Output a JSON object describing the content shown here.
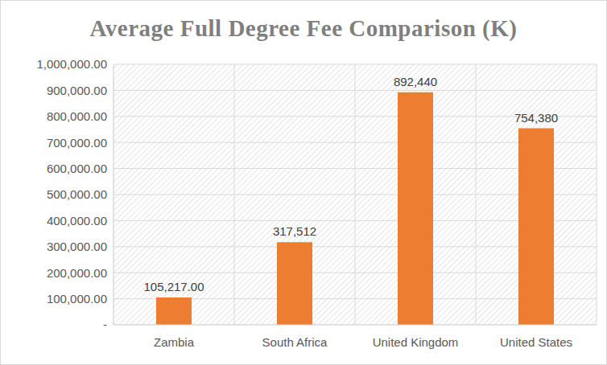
{
  "chart_data": {
    "type": "bar",
    "title": "Average Full Degree Fee Comparison (K)",
    "categories": [
      "Zambia",
      "South Africa",
      "United Kingdom",
      "United States"
    ],
    "values": [
      105217,
      317512,
      892440,
      754380
    ],
    "value_labels": [
      "105,217.00",
      "317,512",
      "892,440",
      "754,380"
    ],
    "color": "#ed7d31",
    "ylim": [
      0,
      1000000
    ],
    "yticks": [
      {
        "value": 0,
        "label": "-"
      },
      {
        "value": 100000,
        "label": "100,000.00"
      },
      {
        "value": 200000,
        "label": "200,000.00"
      },
      {
        "value": 300000,
        "label": "300,000.00"
      },
      {
        "value": 400000,
        "label": "400,000.00"
      },
      {
        "value": 500000,
        "label": "500,000.00"
      },
      {
        "value": 600000,
        "label": "600,000.00"
      },
      {
        "value": 700000,
        "label": "700,000.00"
      },
      {
        "value": 800000,
        "label": "800,000.00"
      },
      {
        "value": 900000,
        "label": "900,000.00"
      },
      {
        "value": 1000000,
        "label": "1,000,000.00"
      }
    ],
    "grid": true,
    "data_labels": true
  }
}
